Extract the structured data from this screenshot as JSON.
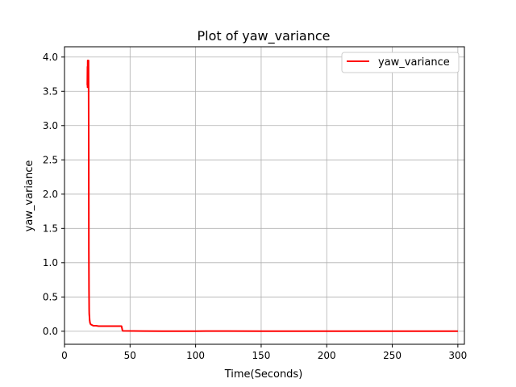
{
  "chart_data": {
    "type": "line",
    "title": "Plot of yaw_variance",
    "xlabel": "Time(Seconds)",
    "ylabel": "yaw_variance",
    "xlim": [
      0,
      305
    ],
    "ylim": [
      -0.19,
      4.15
    ],
    "xticks": [
      "0",
      "50",
      "100",
      "150",
      "200",
      "250",
      "300"
    ],
    "yticks": [
      "0.0",
      "0.5",
      "1.0",
      "1.5",
      "2.0",
      "2.5",
      "3.0",
      "3.5",
      "4.0"
    ],
    "grid": true,
    "legend_position": "top-right",
    "series": [
      {
        "name": "yaw_variance",
        "color": "#ff0000",
        "x": [
          17.4,
          17.5,
          17.6,
          17.7,
          17.8,
          17.9,
          18.0,
          18.1,
          18.2,
          18.3,
          18.4,
          18.5,
          18.6,
          18.7,
          18.8,
          18.9,
          19.0,
          19.2,
          19.5,
          20,
          21,
          22,
          24,
          26,
          30,
          35,
          40,
          43.5,
          43.8,
          44.2,
          44.6,
          60,
          75,
          100,
          125,
          150,
          175,
          200,
          235,
          260,
          300
        ],
        "y": [
          3.59,
          3.86,
          3.56,
          3.95,
          3.6,
          3.95,
          3.57,
          3.95,
          3.7,
          3.95,
          3.58,
          2.5,
          1.2,
          0.6,
          0.3,
          0.25,
          0.22,
          0.16,
          0.12,
          0.1,
          0.09,
          0.08,
          0.08,
          0.075,
          0.075,
          0.075,
          0.075,
          0.075,
          0.05,
          0.01,
          0.005,
          0.003,
          0.0,
          0.002,
          0.003,
          0.002,
          0.002,
          0.0,
          0.001,
          0.0,
          0.0
        ]
      }
    ]
  }
}
